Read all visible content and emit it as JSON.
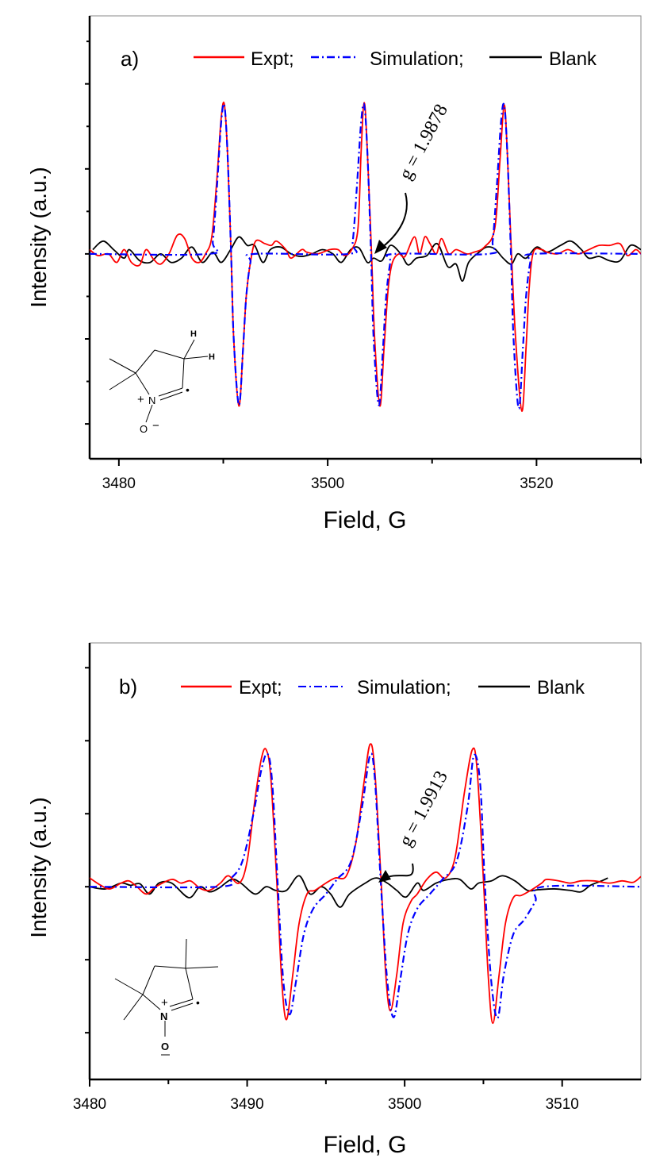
{
  "chart_data": [
    {
      "type": "line",
      "panel_label": "a)",
      "xlabel": "Field, G",
      "ylabel": "Intensity (a.u.)",
      "xlim": [
        3477.2,
        3530
      ],
      "ylim": [
        -2.41,
        2.8
      ],
      "x_ticks": [
        3480,
        3500,
        3520
      ],
      "x_minor_ticks": [
        3490,
        3510,
        3530
      ],
      "y_ticks": [
        -2,
        -1,
        0,
        1,
        2
      ],
      "y_minor_ticks": [
        -1.5,
        -0.5,
        0.5,
        1.5,
        2.5
      ],
      "y_tick_labels_shown": false,
      "grid": false,
      "legend_placement": "top",
      "annotation": {
        "text": "g = 1.9878",
        "arrow_to": [
          3504.6,
          0.0
        ]
      },
      "structure_labels": {
        "h1": "H",
        "h2": "H",
        "n": "N",
        "plus": "+",
        "o": "O",
        "minus": "−",
        "radical": "•"
      },
      "series": [
        {
          "name": "Expt;",
          "color": "#ff0000",
          "style": "solid",
          "x": [
            3477.2,
            3478,
            3479,
            3479.8,
            3480.5,
            3481.2,
            3482,
            3482.6,
            3483.3,
            3484,
            3484.8,
            3485.6,
            3486.3,
            3487,
            3487.7,
            3488.3,
            3488.9,
            3489.4,
            3489.8,
            3490.1,
            3490.4,
            3490.75,
            3491.0,
            3491.5,
            3491.9,
            3492.2,
            3492.6,
            3493.1,
            3494,
            3494.6,
            3495.1,
            3496,
            3496.5,
            3497.5,
            3498,
            3499,
            3500.2,
            3501,
            3501.6,
            3502.3,
            3502.9,
            3503.2,
            3503.5,
            3503.8,
            3504.2,
            3504.5,
            3505.0,
            3505.4,
            3505.8,
            3506.2,
            3506.8,
            3507.4,
            3508.3,
            3508.8,
            3509.3,
            3509.8,
            3510.4,
            3510.9,
            3511.6,
            3512.3,
            3513.3,
            3514,
            3515,
            3516,
            3516.5,
            3516.9,
            3517.2,
            3517.6,
            3518,
            3518.6,
            3519,
            3519.3,
            3519.7,
            3520.5,
            3521,
            3522,
            3523,
            3524,
            3525,
            3526,
            3527,
            3528,
            3528.7,
            3529.5,
            3530
          ],
          "y": [
            0.05,
            -0.02,
            0,
            -0.1,
            0.05,
            -0.1,
            -0.13,
            0.05,
            -0.06,
            -0.12,
            0,
            0.22,
            0.18,
            -0.05,
            -0.1,
            0,
            0.2,
            0.9,
            1.6,
            1.76,
            1.2,
            0,
            -1.0,
            -1.79,
            -1.1,
            -0.5,
            -0.1,
            0.15,
            0.12,
            0.1,
            0.15,
            0.05,
            -0.05,
            0.05,
            0.02,
            0,
            0.05,
            0.05,
            -0.02,
            0.05,
            0.3,
            1.2,
            1.78,
            1.2,
            0,
            -1.0,
            -1.79,
            -1.1,
            -0.4,
            -0.1,
            0,
            -0.03,
            0.2,
            0,
            0.2,
            0.12,
            0,
            0.18,
            0,
            0.05,
            0,
            0.02,
            0.08,
            0.3,
            1.1,
            1.75,
            1.2,
            0,
            -1.0,
            -1.85,
            -1.1,
            -0.4,
            0.02,
            0.05,
            0.02,
            0,
            0.05,
            0,
            0.05,
            0.1,
            0.1,
            0.12,
            -0.02,
            0.05,
            0
          ]
        },
        {
          "name": "Simulation;",
          "color": "#0000ff",
          "style": "dash-dot",
          "x": [
            3477.2,
            3488.6,
            3489,
            3489.4,
            3489.8,
            3490.1,
            3490.4,
            3490.75,
            3491.0,
            3491.5,
            3491.9,
            3492.2,
            3492.6,
            3493,
            3502.0,
            3502.4,
            3502.8,
            3503.2,
            3503.5,
            3503.8,
            3504.15,
            3504.4,
            3504.9,
            3505.3,
            3505.6,
            3506.0,
            3506.4,
            3515.4,
            3515.8,
            3516.2,
            3516.6,
            3516.9,
            3517.2,
            3517.55,
            3517.8,
            3518.3,
            3518.7,
            3519.0,
            3519.4,
            3519.8,
            3530
          ],
          "y": [
            0,
            0,
            0.15,
            0.8,
            1.55,
            1.75,
            1.2,
            0,
            -1.0,
            -1.78,
            -1.1,
            -0.5,
            -0.1,
            0,
            0,
            0.15,
            0.8,
            1.55,
            1.75,
            1.2,
            0,
            -1.0,
            -1.78,
            -1.1,
            -0.5,
            -0.1,
            0,
            0,
            0.15,
            0.8,
            1.55,
            1.75,
            1.2,
            0,
            -1.0,
            -1.82,
            -1.1,
            -0.5,
            -0.1,
            0,
            0
          ]
        },
        {
          "name": "Blank",
          "color": "#000000",
          "style": "solid",
          "x": [
            3477.5,
            3478.5,
            3479.5,
            3480.5,
            3481,
            3482,
            3483,
            3484,
            3485,
            3486,
            3487,
            3488,
            3489,
            3489.8,
            3490.7,
            3491.5,
            3492.3,
            3493,
            3493.8,
            3494.5,
            3495.5,
            3496.5,
            3497.5,
            3498.5,
            3499.5,
            3500.5,
            3501.3,
            3502.2,
            3503,
            3503.8,
            3504.4,
            3505.2,
            3506,
            3507,
            3507.7,
            3508.5,
            3509.5,
            3510.5,
            3511.5,
            3512.3,
            3512.9,
            3513.5,
            3514.5,
            3515.2,
            3516,
            3516.8,
            3517.6,
            3518.2,
            3519,
            3520,
            3521,
            3522.3,
            3523.3,
            3524.3,
            3525,
            3526,
            3527,
            3528,
            3529,
            3530
          ],
          "y": [
            0.05,
            0.15,
            0.05,
            -0.05,
            0.05,
            -0.08,
            -0.1,
            0,
            -0.1,
            -0.05,
            0.08,
            -0.1,
            0.02,
            -0.1,
            0.05,
            0.2,
            0.1,
            0.1,
            -0.1,
            0.05,
            0.08,
            0,
            -0.03,
            0,
            0.05,
            0,
            -0.1,
            0.05,
            0.07,
            -0.1,
            -0.05,
            -0.08,
            0.1,
            0,
            -0.13,
            -0.05,
            -0.02,
            0.12,
            -0.15,
            -0.12,
            -0.32,
            -0.1,
            0.02,
            0.08,
            0.06,
            -0.05,
            -0.12,
            0,
            -0.05,
            0.08,
            0.02,
            0.1,
            0.15,
            0.05,
            -0.05,
            -0.03,
            -0.08,
            -0.08,
            0.1,
            0.05
          ]
        }
      ]
    },
    {
      "type": "line",
      "panel_label": "b)",
      "xlabel": "Field, G",
      "ylabel": "Intensity (a.u.)",
      "xlim": [
        3480,
        3515
      ],
      "ylim": [
        -2.64,
        3.34
      ],
      "x_ticks": [
        3480,
        3490,
        3500,
        3510
      ],
      "x_minor_ticks": [
        3485,
        3495,
        3505
      ],
      "y_ticks": [
        -2,
        -1,
        0,
        1,
        2,
        3
      ],
      "y_minor_ticks": [],
      "y_tick_labels_shown": false,
      "grid": false,
      "legend_placement": "top",
      "annotation": {
        "text": "g = 1.9913",
        "arrow_to": [
          3498.3,
          0.08
        ]
      },
      "structure_labels": {
        "n": "N",
        "plus": "+",
        "o": "O",
        "radical": "•"
      },
      "series": [
        {
          "name": "Expt;",
          "color": "#ff0000",
          "style": "solid",
          "x": [
            3480,
            3480.7,
            3481.3,
            3482,
            3482.5,
            3483,
            3483.6,
            3484.2,
            3485.2,
            3485.8,
            3486.4,
            3487,
            3487.6,
            3488.3,
            3488.8,
            3489.5,
            3490,
            3490.5,
            3490.9,
            3491.2,
            3491.5,
            3491.9,
            3492.2,
            3492.5,
            3492.9,
            3493.3,
            3493.8,
            3494.3,
            3495,
            3495.6,
            3496.3,
            3496.9,
            3497.4,
            3497.8,
            3498.1,
            3498.5,
            3498.8,
            3499.1,
            3499.5,
            3499.9,
            3500.4,
            3500.8,
            3501.4,
            3502,
            3502.6,
            3503.2,
            3503.8,
            3504.3,
            3504.6,
            3505,
            3505.3,
            3505.6,
            3506,
            3506.4,
            3506.9,
            3507.4,
            3508,
            3508.7,
            3509,
            3509.8,
            3510.5,
            3511.2,
            3512,
            3513,
            3513.8,
            3514.5,
            3515
          ],
          "y": [
            0.12,
            0.02,
            -0.03,
            0.05,
            0.08,
            0,
            -0.1,
            0,
            0.1,
            0.05,
            0.08,
            -0.02,
            -0.05,
            0.05,
            0.15,
            0.05,
            0.35,
            1.2,
            1.75,
            1.88,
            1.5,
            0,
            -1.3,
            -1.82,
            -1.2,
            -0.5,
            -0.1,
            -0.05,
            0.05,
            0.12,
            0.15,
            0.6,
            1.4,
            1.95,
            1.6,
            0.1,
            -1.2,
            -1.7,
            -1.2,
            -0.5,
            -0.2,
            -0.1,
            0.1,
            0.2,
            0.12,
            0.4,
            1.3,
            1.88,
            1.6,
            0.1,
            -1.2,
            -1.87,
            -1.2,
            -0.5,
            -0.15,
            -0.12,
            -0.05,
            0.05,
            0.1,
            0.08,
            0.05,
            0.08,
            0.08,
            0.05,
            0.08,
            0.06,
            0.14
          ]
        },
        {
          "name": "Simulation;",
          "color": "#0000ff",
          "style": "dash-dot",
          "x": [
            3480,
            3488.2,
            3489,
            3489.7,
            3490.4,
            3490.9,
            3491.3,
            3491.6,
            3491.95,
            3492.3,
            3492.7,
            3493.1,
            3493.6,
            3494.2,
            3495,
            3495.7,
            3496.6,
            3497.3,
            3497.8,
            3498.1,
            3498.5,
            3498.9,
            3499.3,
            3499.7,
            3500.2,
            3500.8,
            3501.6,
            3502.4,
            3503.3,
            3504.0,
            3504.4,
            3504.8,
            3505.1,
            3505.5,
            3505.9,
            3506.3,
            3506.9,
            3507.6,
            3508.3,
            3508.8,
            3515
          ],
          "y": [
            0,
            0,
            0.12,
            0.35,
            1.0,
            1.6,
            1.82,
            1.4,
            0,
            -1.3,
            -1.75,
            -1.3,
            -0.65,
            -0.3,
            -0.1,
            0.1,
            0.35,
            1.1,
            1.8,
            1.5,
            0,
            -1.3,
            -1.79,
            -1.3,
            -0.65,
            -0.3,
            -0.1,
            0.1,
            0.35,
            1.1,
            1.8,
            1.4,
            0,
            -1.3,
            -1.8,
            -1.2,
            -0.65,
            -0.45,
            -0.2,
            0,
            0
          ]
        },
        {
          "name": "Blank",
          "color": "#000000",
          "style": "solid",
          "x": [
            3480,
            3481,
            3482,
            3482.6,
            3483.2,
            3483.8,
            3484.4,
            3485.2,
            3486.3,
            3487,
            3487.6,
            3488.2,
            3489,
            3489.6,
            3490.5,
            3491.2,
            3491.8,
            3492.5,
            3493.3,
            3494,
            3494.7,
            3495.3,
            3495.9,
            3496.5,
            3497.5,
            3498.2,
            3498.9,
            3499.5,
            3500.1,
            3500.8,
            3501.2,
            3502,
            3502.8,
            3503.5,
            3504.2,
            3504.7,
            3505.5,
            3506.2,
            3507,
            3507.8,
            3508.5,
            3509.5,
            3510.5,
            3511.2,
            3511.8,
            3512.5,
            3512.9
          ],
          "y": [
            0,
            -0.03,
            0.05,
            0.02,
            0.04,
            -0.1,
            0.05,
            0.05,
            -0.15,
            0,
            -0.07,
            -0.02,
            0.1,
            0.05,
            -0.1,
            0,
            -0.05,
            -0.05,
            0.15,
            -0.1,
            0,
            -0.1,
            -0.28,
            -0.1,
            0.05,
            0.12,
            0.05,
            -0.05,
            -0.14,
            0.05,
            -0.05,
            0.05,
            0.1,
            0.1,
            -0.03,
            0.05,
            0.08,
            0.15,
            0.08,
            -0.05,
            -0.04,
            -0.03,
            -0.05,
            -0.07,
            0.02,
            0.08,
            0.12
          ]
        }
      ]
    }
  ]
}
